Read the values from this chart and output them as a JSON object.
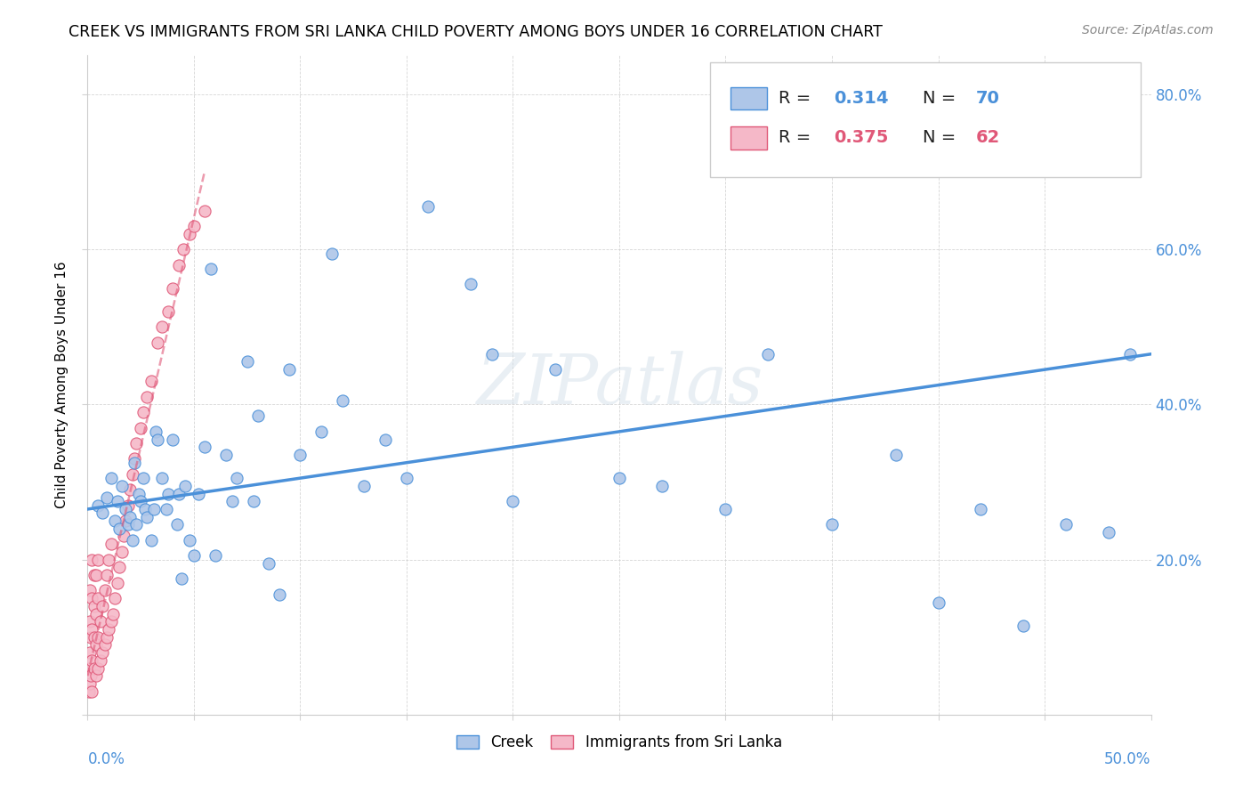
{
  "title": "CREEK VS IMMIGRANTS FROM SRI LANKA CHILD POVERTY AMONG BOYS UNDER 16 CORRELATION CHART",
  "source": "Source: ZipAtlas.com",
  "ylabel": "Child Poverty Among Boys Under 16",
  "xlim": [
    0,
    0.5
  ],
  "ylim": [
    0,
    0.85
  ],
  "watermark": "ZIPatlas",
  "legend_r1": "0.314",
  "legend_n1": "70",
  "legend_r2": "0.375",
  "legend_n2": "62",
  "creek_color": "#aec6e8",
  "creek_edge_color": "#4a90d9",
  "srilanka_color": "#f5b8c8",
  "srilanka_edge_color": "#e05878",
  "creek_line_color": "#4a90d9",
  "srilanka_line_color": "#e05878",
  "creek_x": [
    0.005,
    0.007,
    0.009,
    0.011,
    0.013,
    0.014,
    0.015,
    0.016,
    0.018,
    0.019,
    0.02,
    0.021,
    0.022,
    0.023,
    0.024,
    0.025,
    0.026,
    0.027,
    0.028,
    0.03,
    0.031,
    0.032,
    0.033,
    0.035,
    0.037,
    0.038,
    0.04,
    0.042,
    0.043,
    0.044,
    0.046,
    0.048,
    0.05,
    0.052,
    0.055,
    0.058,
    0.06,
    0.065,
    0.068,
    0.07,
    0.075,
    0.078,
    0.08,
    0.085,
    0.09,
    0.095,
    0.1,
    0.11,
    0.115,
    0.12,
    0.13,
    0.14,
    0.15,
    0.16,
    0.18,
    0.19,
    0.2,
    0.22,
    0.25,
    0.27,
    0.3,
    0.32,
    0.35,
    0.38,
    0.4,
    0.42,
    0.44,
    0.46,
    0.48,
    0.49
  ],
  "creek_y": [
    0.27,
    0.26,
    0.28,
    0.305,
    0.25,
    0.275,
    0.24,
    0.295,
    0.265,
    0.245,
    0.255,
    0.225,
    0.325,
    0.245,
    0.285,
    0.275,
    0.305,
    0.265,
    0.255,
    0.225,
    0.265,
    0.365,
    0.355,
    0.305,
    0.265,
    0.285,
    0.355,
    0.245,
    0.285,
    0.175,
    0.295,
    0.225,
    0.205,
    0.285,
    0.345,
    0.575,
    0.205,
    0.335,
    0.275,
    0.305,
    0.455,
    0.275,
    0.385,
    0.195,
    0.155,
    0.445,
    0.335,
    0.365,
    0.595,
    0.405,
    0.295,
    0.355,
    0.305,
    0.655,
    0.555,
    0.465,
    0.275,
    0.445,
    0.305,
    0.295,
    0.265,
    0.465,
    0.245,
    0.335,
    0.145,
    0.265,
    0.115,
    0.245,
    0.235,
    0.465
  ],
  "srilanka_x": [
    0.0005,
    0.0005,
    0.001,
    0.001,
    0.001,
    0.001,
    0.0015,
    0.0015,
    0.002,
    0.002,
    0.002,
    0.002,
    0.002,
    0.003,
    0.003,
    0.003,
    0.003,
    0.004,
    0.004,
    0.004,
    0.004,
    0.005,
    0.005,
    0.005,
    0.005,
    0.006,
    0.006,
    0.007,
    0.007,
    0.008,
    0.008,
    0.009,
    0.009,
    0.01,
    0.01,
    0.011,
    0.011,
    0.012,
    0.013,
    0.014,
    0.015,
    0.016,
    0.017,
    0.018,
    0.019,
    0.02,
    0.021,
    0.022,
    0.023,
    0.025,
    0.026,
    0.028,
    0.03,
    0.033,
    0.035,
    0.038,
    0.04,
    0.043,
    0.045,
    0.048,
    0.05,
    0.055
  ],
  "srilanka_y": [
    0.03,
    0.06,
    0.04,
    0.08,
    0.12,
    0.16,
    0.05,
    0.1,
    0.03,
    0.07,
    0.11,
    0.15,
    0.2,
    0.06,
    0.1,
    0.14,
    0.18,
    0.05,
    0.09,
    0.13,
    0.18,
    0.06,
    0.1,
    0.15,
    0.2,
    0.07,
    0.12,
    0.08,
    0.14,
    0.09,
    0.16,
    0.1,
    0.18,
    0.11,
    0.2,
    0.12,
    0.22,
    0.13,
    0.15,
    0.17,
    0.19,
    0.21,
    0.23,
    0.25,
    0.27,
    0.29,
    0.31,
    0.33,
    0.35,
    0.37,
    0.39,
    0.41,
    0.43,
    0.48,
    0.5,
    0.52,
    0.55,
    0.58,
    0.6,
    0.62,
    0.63,
    0.65
  ],
  "creek_line_x0": 0.0,
  "creek_line_y0": 0.265,
  "creek_line_x1": 0.5,
  "creek_line_y1": 0.465,
  "sl_line_x0": 0.0,
  "sl_line_y0": 0.05,
  "sl_line_x1": 0.055,
  "sl_line_y1": 0.7
}
